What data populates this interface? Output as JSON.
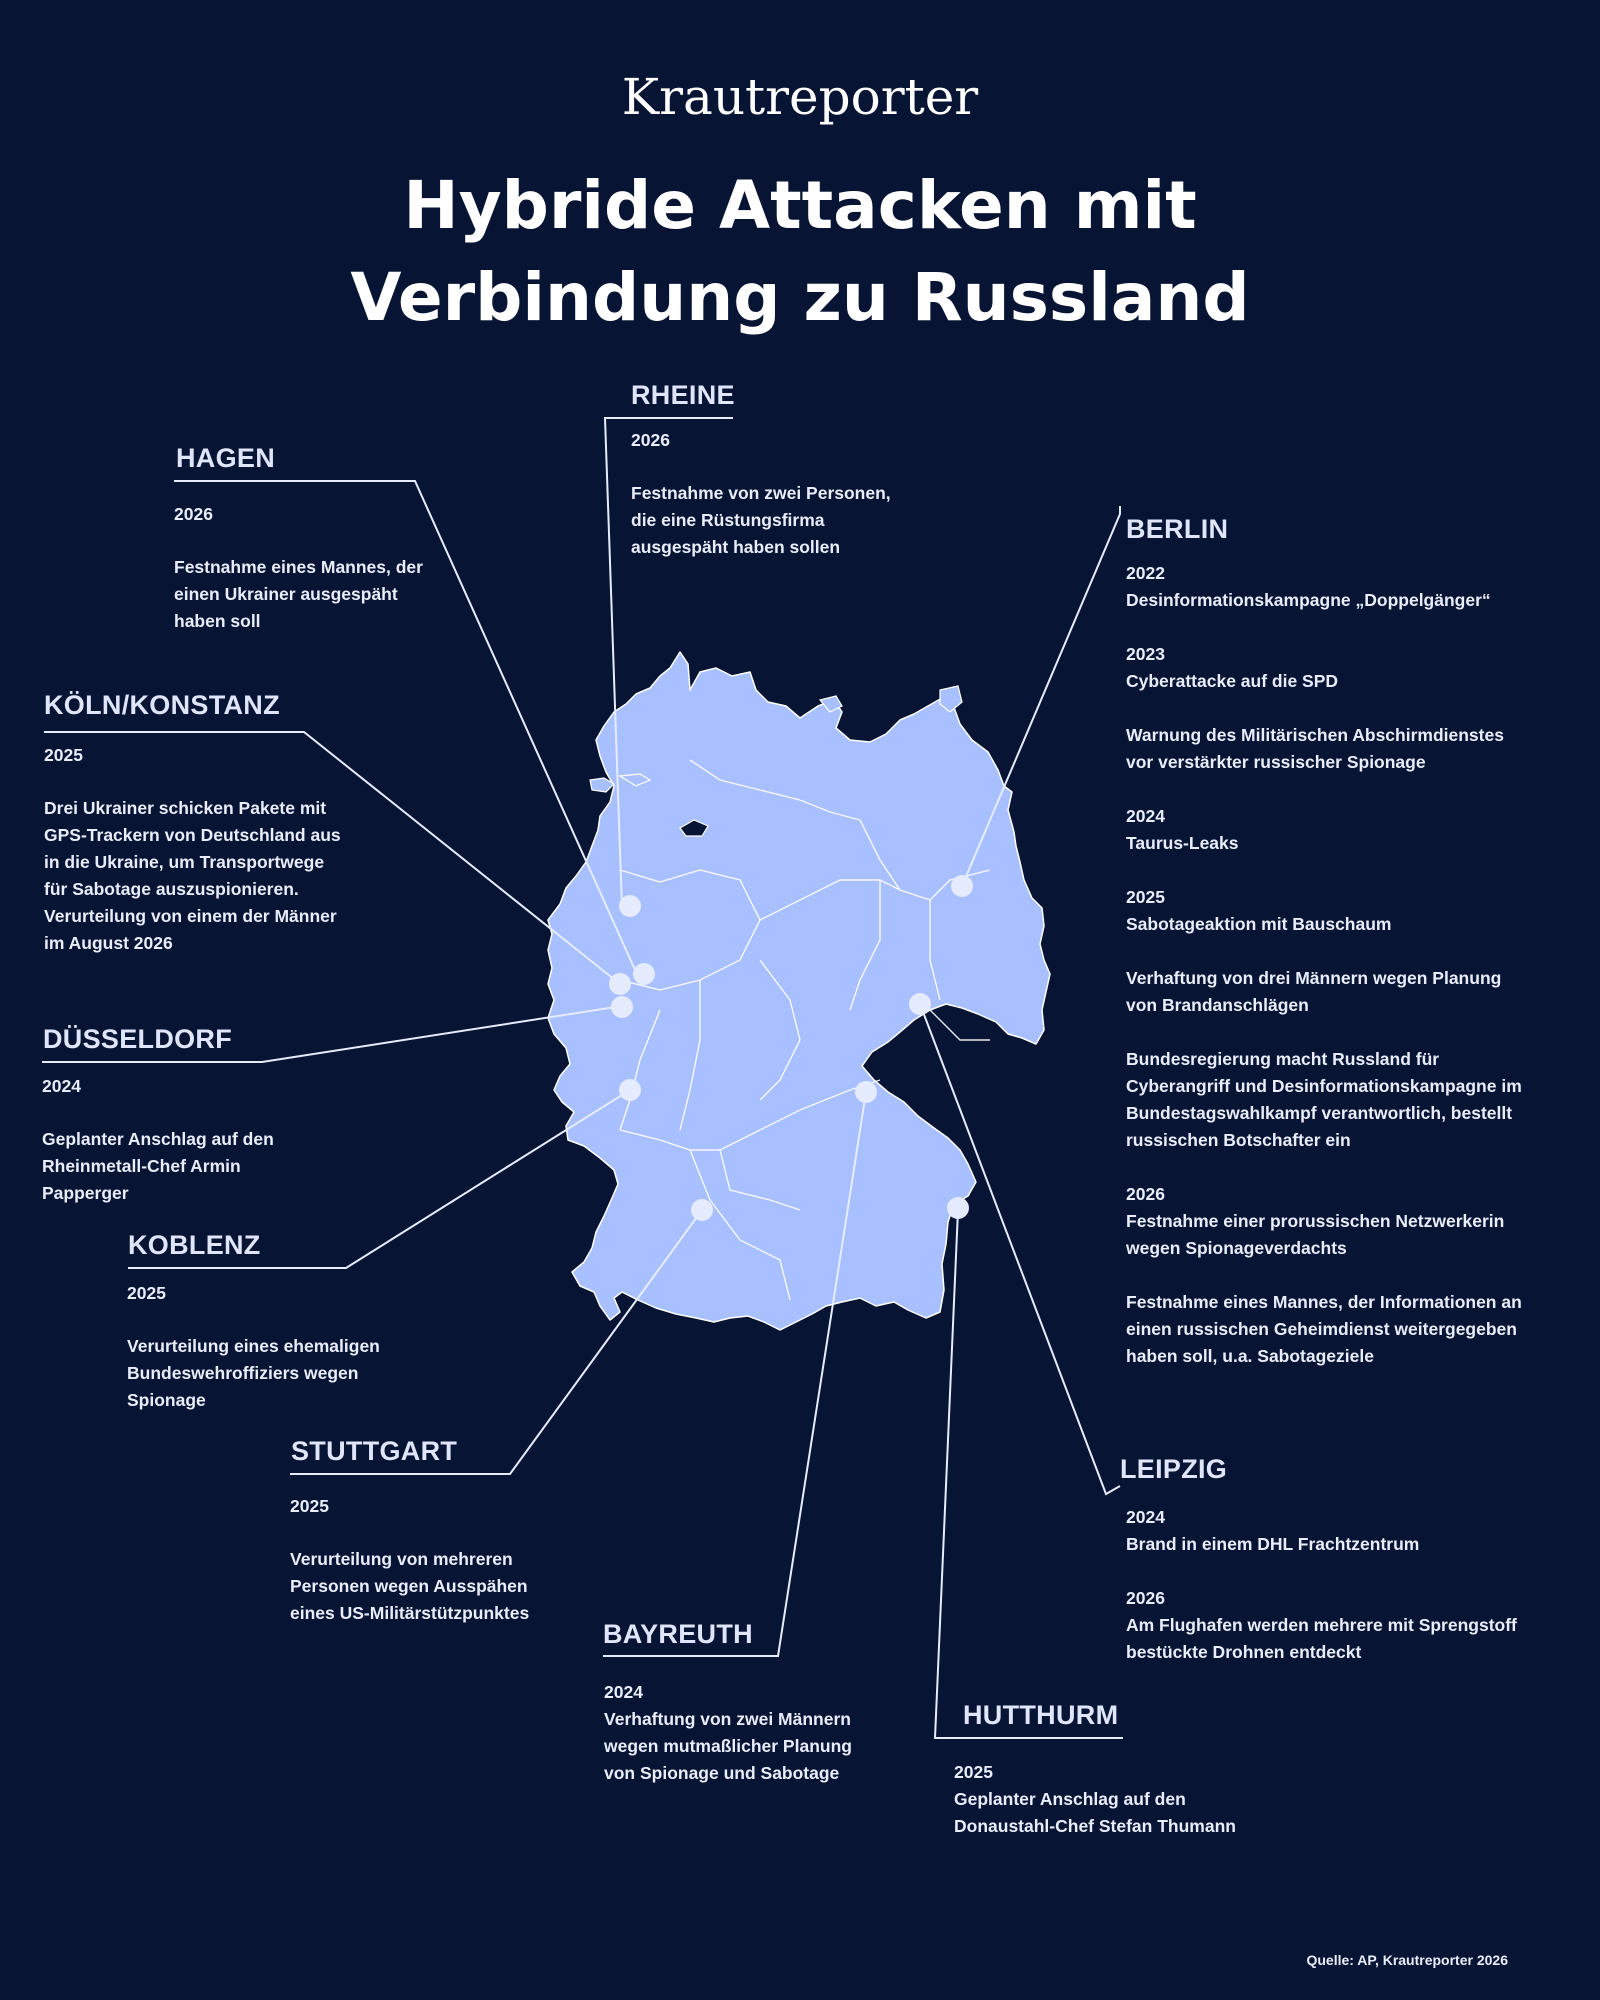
{
  "header": {
    "brand": "Krautreporter",
    "title_line1": "Hybride Attacken mit",
    "title_line2": "Verbindung zu Russland"
  },
  "colors": {
    "background": "#081433",
    "map_fill": "#a8c0ff",
    "marker": "#e6ecff",
    "connector": "#e6ecff"
  },
  "locations": {
    "rheine": {
      "name": "RHEINE",
      "year": "2026",
      "text": [
        "Festnahme von zwei Personen,",
        "die eine Rüstungsfirma",
        "ausgespäht haben sollen"
      ]
    },
    "hagen": {
      "name": "HAGEN",
      "year": "2026",
      "text": [
        "Festnahme eines Mannes, der",
        "einen Ukrainer ausgespäht",
        "haben soll"
      ]
    },
    "koeln": {
      "name": "KÖLN/KONSTANZ",
      "year": "2025",
      "text": [
        "Drei Ukrainer schicken Pakete mit",
        "GPS-Trackern von Deutschland aus",
        "in die Ukraine, um Transportwege",
        "für Sabotage auszuspionieren.",
        "Verurteilung von einem der Männer",
        "im August 2026"
      ]
    },
    "duesseldorf": {
      "name": "DÜSSELDORF",
      "year": "2024",
      "text": [
        "Geplanter Anschlag auf den",
        "Rheinmetall-Chef Armin",
        "Papperger"
      ]
    },
    "koblenz": {
      "name": "KOBLENZ",
      "year": "2025",
      "text": [
        "Verurteilung eines ehemaligen",
        "Bundeswehroffiziers wegen",
        "Spionage"
      ]
    },
    "stuttgart": {
      "name": "STUTTGART",
      "year": "2025",
      "text": [
        "Verurteilung von mehreren",
        "Personen wegen Ausspähen",
        "eines US-Militärstützpunktes"
      ]
    },
    "bayreuth": {
      "name": "BAYREUTH",
      "year": "2024",
      "text": [
        "Verhaftung von zwei Männern",
        "wegen mutmaßlicher Planung",
        "von Spionage und Sabotage"
      ]
    },
    "hutthurm": {
      "name": "HUTTHURM",
      "year": "2025",
      "text": [
        "Geplanter Anschlag auf den",
        "Donaustahl-Chef Stefan Thumann"
      ]
    },
    "berlin": {
      "name": "BERLIN",
      "entries": [
        {
          "year": "2022",
          "text": [
            "Desinformationskampagne „Doppelgänger“"
          ]
        },
        {
          "year": "2023",
          "text": [
            "Cyberattacke auf die SPD"
          ]
        },
        {
          "year": "",
          "text": [
            "Warnung des Militärischen Abschirmdienstes",
            "vor verstärkter russischer Spionage"
          ]
        },
        {
          "year": "2024",
          "text": [
            "Taurus-Leaks"
          ]
        },
        {
          "year": "2025",
          "text": [
            "Sabotageaktion mit Bauschaum"
          ]
        },
        {
          "year": "",
          "text": [
            "Verhaftung von drei Männern wegen Planung",
            "von Brandanschlägen"
          ]
        },
        {
          "year": "",
          "text": [
            "Bundesregierung macht Russland für",
            "Cyberangriff und Desinformationskampagne im",
            "Bundestagswahlkampf verantwortlich, bestellt",
            "russischen Botschafter ein"
          ]
        },
        {
          "year": "2026",
          "text": [
            "Festnahme einer prorussischen Netzwerkerin",
            "wegen Spionageverdachts"
          ]
        },
        {
          "year": "",
          "text": [
            "Festnahme eines Mannes, der Informationen an",
            "einen russischen Geheimdienst weitergegeben",
            "haben soll, u.a. Sabotageziele"
          ]
        }
      ]
    },
    "leipzig": {
      "name": "LEIPZIG",
      "entries": [
        {
          "year": "2024",
          "text": [
            "Brand in einem DHL Frachtzentrum"
          ]
        },
        {
          "year": "2026",
          "text": [
            "Am Flughafen werden mehrere mit Sprengstoff",
            "bestückte Drohnen entdeckt"
          ]
        }
      ]
    }
  },
  "footer": {
    "source": "Quelle: AP, Krautreporter 2026"
  }
}
